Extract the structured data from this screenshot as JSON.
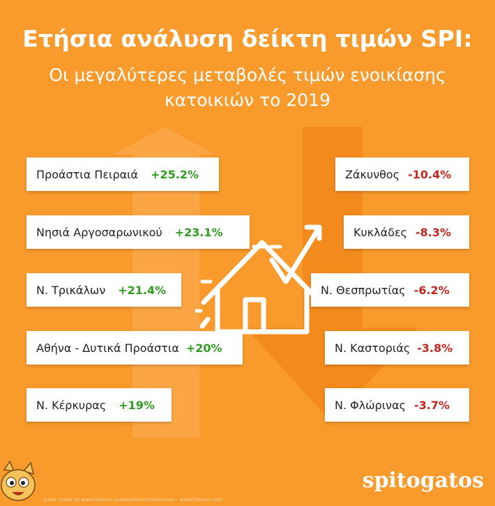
{
  "header": {
    "title": "Ετήσια ανάλυση δείκτη τιμών SPI:",
    "subtitle_line1": "Οι μεγαλύτερες μεταβολές τιμών ενοικίασης",
    "subtitle_line2": "κατοικιών το 2019"
  },
  "increases": [
    {
      "name": "Προάστια Πειραιά",
      "value": "+25.2%"
    },
    {
      "name": "Νησιά Αργοσαρωνικού",
      "value": "+23.1%"
    },
    {
      "name": "Ν. Τρικάλων",
      "value": "+21.4%"
    },
    {
      "name": "Αθήνα - Δυτικά Προάστια",
      "value": "+20%"
    },
    {
      "name": "Ν. Κέρκυρας",
      "value": "+19%"
    }
  ],
  "decreases": [
    {
      "name": "Ζάκυνθος",
      "value": "-10.4%"
    },
    {
      "name": "Κυκλάδες",
      "value": "-8.3%"
    },
    {
      "name": "Ν. Θεσπρωτίας",
      "value": "-6.2%"
    },
    {
      "name": "Ν. Καστοριάς",
      "value": "-3.8%"
    },
    {
      "name": "Ν. Φλώρινας",
      "value": "-3.7%"
    }
  ],
  "colors": {
    "background": "#f89a2c",
    "increase": "#2f9b1f",
    "decrease": "#c4261f"
  },
  "footer": {
    "brand": "spitogatos",
    "credit": "Icons made by www.flaticon.com/authors/smashicons - www.flaticon.com"
  },
  "icons": [
    "house-chart-icon",
    "up-arrow-icon",
    "down-arrow-icon",
    "cat-mascot-icon"
  ]
}
